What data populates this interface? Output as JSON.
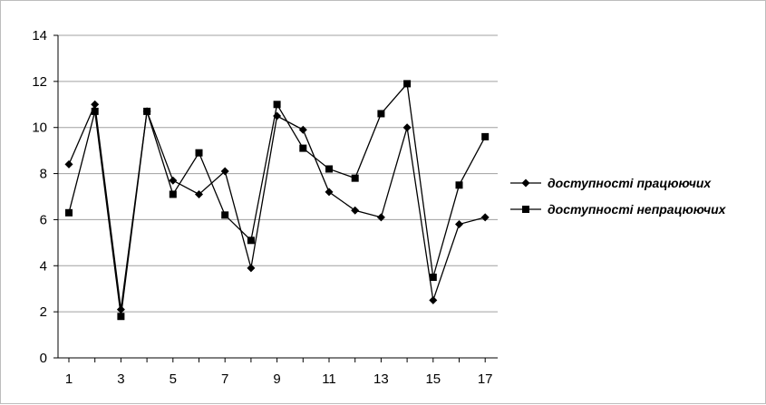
{
  "chart_data": {
    "type": "line",
    "title": "",
    "xlabel": "",
    "ylabel": "",
    "x": [
      1,
      2,
      3,
      4,
      5,
      6,
      7,
      8,
      9,
      10,
      11,
      12,
      13,
      14,
      15,
      16,
      17
    ],
    "x_tick_labels": [
      "1",
      "3",
      "5",
      "7",
      "9",
      "11",
      "13",
      "15",
      "17"
    ],
    "ylim": [
      0,
      14
    ],
    "y_ticks": [
      0,
      2,
      4,
      6,
      8,
      10,
      12,
      14
    ],
    "grid": "horizontal",
    "legend_position": "right",
    "series": [
      {
        "name": "доступності працюючих",
        "marker": "diamond",
        "color": "#000000",
        "values": [
          8.4,
          11.0,
          2.1,
          10.7,
          7.7,
          7.1,
          8.1,
          3.9,
          10.5,
          9.9,
          7.2,
          6.4,
          6.1,
          10.0,
          2.5,
          5.8,
          6.1
        ]
      },
      {
        "name": "доступності непрацюючих",
        "marker": "square",
        "color": "#000000",
        "values": [
          6.3,
          10.7,
          1.8,
          10.7,
          7.1,
          8.9,
          6.2,
          5.1,
          11.0,
          9.1,
          8.2,
          7.8,
          10.6,
          11.9,
          3.5,
          7.5,
          9.6
        ]
      }
    ]
  }
}
